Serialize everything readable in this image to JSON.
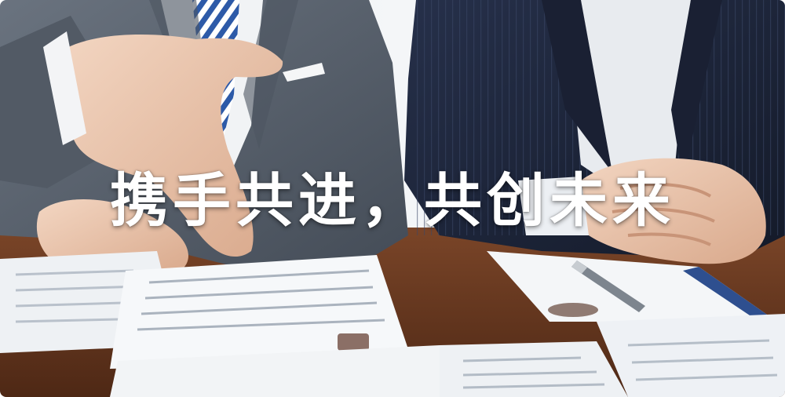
{
  "banner": {
    "headline": "携手共进，共创未来"
  },
  "colors": {
    "left_suit": "#5b6470",
    "right_suit": "#1c2336",
    "table": "#6a3a22",
    "paper": "#f3f5f7",
    "headline_text": "#ffffff"
  },
  "icons": [
    "pen-icon"
  ]
}
